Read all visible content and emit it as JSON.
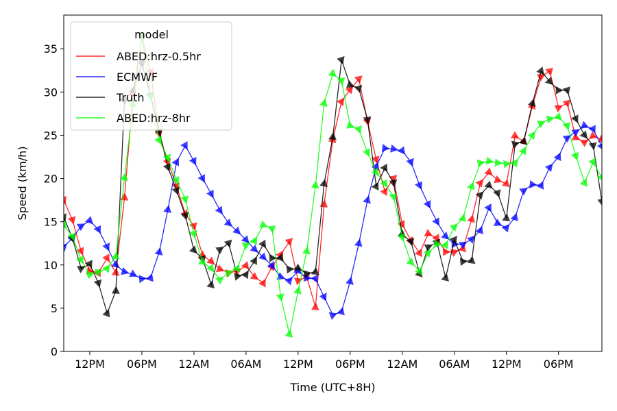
{
  "chart_data": {
    "type": "line",
    "xlabel": "Time (UTC+8H)",
    "ylabel": "Speed (km/h)",
    "x_start_label": "06AM",
    "x_step_hours": 1,
    "xlim_hours": [
      0,
      62
    ],
    "ylim": [
      0,
      38.9
    ],
    "x_ticks": [
      {
        "hour": 3,
        "label": "12PM"
      },
      {
        "hour": 9,
        "label": "06PM"
      },
      {
        "hour": 15,
        "label": "12AM"
      },
      {
        "hour": 21,
        "label": "06AM"
      },
      {
        "hour": 27,
        "label": "12PM"
      },
      {
        "hour": 33,
        "label": "06PM"
      },
      {
        "hour": 39,
        "label": "12AM"
      },
      {
        "hour": 45,
        "label": "06AM"
      },
      {
        "hour": 51,
        "label": "12PM"
      },
      {
        "hour": 57,
        "label": "06PM"
      }
    ],
    "y_ticks": [
      0,
      5,
      10,
      15,
      20,
      25,
      30,
      35
    ],
    "legend": {
      "title": "model",
      "position": "upper left"
    },
    "series": [
      {
        "name": "ABED:hrz-0.5hr",
        "color": "#ff0000",
        "values": [
          17.5,
          15.2,
          11.6,
          9.3,
          9.1,
          10.8,
          9.1,
          17.8,
          29.9,
          36.3,
          32.3,
          25.2,
          21.9,
          19.1,
          15.9,
          14.5,
          11.1,
          10.4,
          9.5,
          9.1,
          9.3,
          9.9,
          8.6,
          7.9,
          9.8,
          11.2,
          12.7,
          8.2,
          8.6,
          5.1,
          17.0,
          24.5,
          28.9,
          30.3,
          31.5,
          26.6,
          22.2,
          18.5,
          20.0,
          14.7,
          12.8,
          11.4,
          13.6,
          13.1,
          11.5,
          11.5,
          11.9,
          15.3,
          19.5,
          20.7,
          19.8,
          19.4,
          24.9,
          24.3,
          28.4,
          31.8,
          32.4,
          28.2,
          28.7,
          24.7,
          24.2,
          24.9,
          24.5
        ]
      },
      {
        "name": "ECMWF",
        "color": "#0000ff",
        "values": [
          12.1,
          13.1,
          14.5,
          15.1,
          14.1,
          12.1,
          10.0,
          9.2,
          8.9,
          8.4,
          8.5,
          11.5,
          16.4,
          21.9,
          23.8,
          22.0,
          20.0,
          18.2,
          16.3,
          14.8,
          13.9,
          12.9,
          11.8,
          10.9,
          9.9,
          8.6,
          8.2,
          9.3,
          8.5,
          8.4,
          6.3,
          4.2,
          4.6,
          8.1,
          12.5,
          17.5,
          21.4,
          23.5,
          23.4,
          23.2,
          21.9,
          19.2,
          17.0,
          15.0,
          13.3,
          12.4,
          12.4,
          13.0,
          14.0,
          16.6,
          14.8,
          14.3,
          15.5,
          18.6,
          19.3,
          19.2,
          21.3,
          22.5,
          24.7,
          25.4,
          26.1,
          25.7,
          23.7
        ]
      },
      {
        "name": "Truth",
        "color": "#000000",
        "values": [
          15.5,
          13.1,
          9.6,
          10.1,
          7.9,
          4.4,
          7.0,
          29.1,
          30.2,
          33.3,
          29.6,
          25.4,
          21.3,
          18.6,
          15.7,
          11.7,
          10.7,
          7.7,
          11.8,
          12.5,
          8.7,
          8.9,
          10.5,
          12.4,
          10.8,
          10.8,
          9.5,
          9.6,
          9.0,
          9.2,
          19.4,
          24.8,
          33.7,
          30.8,
          30.4,
          26.8,
          19.1,
          21.2,
          19.5,
          13.5,
          12.7,
          9.0,
          12.1,
          12.6,
          8.5,
          12.9,
          10.4,
          10.5,
          18.1,
          19.2,
          18.3,
          15.4,
          24.0,
          24.3,
          28.7,
          32.4,
          31.2,
          30.2,
          30.2,
          26.9,
          25.0,
          23.8,
          17.3
        ]
      },
      {
        "name": "ABED:hrz-8hr",
        "color": "#00ff00",
        "values": [
          14.6,
          13.3,
          10.6,
          8.9,
          9.2,
          9.6,
          11.0,
          20.1,
          28.6,
          36.5,
          29.5,
          24.4,
          22.4,
          19.8,
          17.6,
          13.6,
          10.3,
          9.6,
          8.3,
          9.1,
          9.6,
          12.3,
          12.8,
          14.6,
          14.2,
          6.3,
          2.0,
          7.0,
          11.6,
          19.2,
          28.7,
          32.1,
          31.3,
          26.1,
          25.7,
          23.0,
          20.7,
          19.4,
          17.9,
          13.2,
          10.3,
          9.3,
          11.4,
          12.4,
          12.3,
          14.4,
          15.4,
          19.1,
          21.8,
          22.0,
          21.8,
          21.7,
          21.8,
          23.2,
          25.0,
          26.4,
          26.9,
          27.1,
          26.1,
          22.6,
          19.5,
          21.9,
          20.1
        ]
      }
    ]
  }
}
